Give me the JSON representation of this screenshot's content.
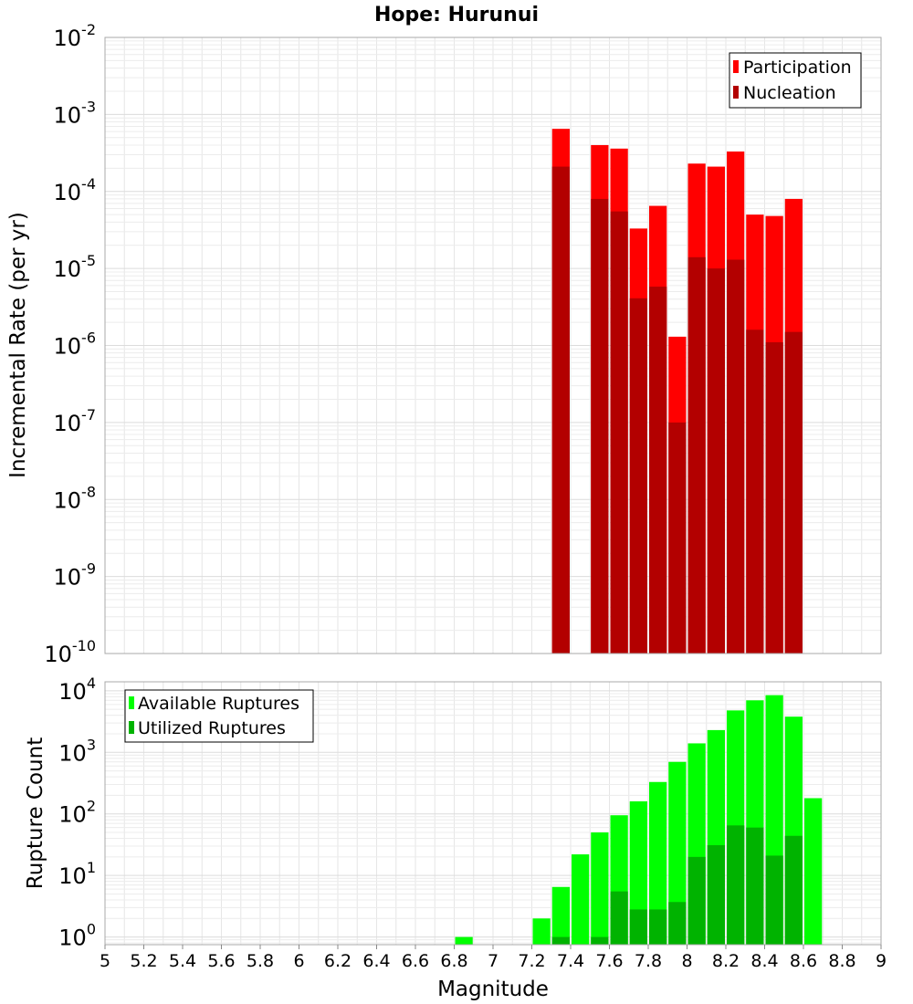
{
  "chart_data": [
    {
      "type": "bar",
      "title": "Hope: Hurunui",
      "xlabel": "",
      "ylabel": "Incremental Rate (per yr)",
      "yscale": "log",
      "xlim": [
        5,
        9
      ],
      "ylim": [
        1e-10,
        0.01
      ],
      "y_tick_exponents": [
        "-10",
        "-9",
        "-8",
        "-7",
        "-6",
        "-5",
        "-4",
        "-3",
        "-2"
      ],
      "grid": true,
      "legend_position": "top-right",
      "series": [
        {
          "name": "Participation",
          "color": "#ff0000",
          "x": [
            7.35,
            7.55,
            7.65,
            7.75,
            7.85,
            7.95,
            8.05,
            8.15,
            8.25,
            8.35,
            8.45,
            8.55
          ],
          "values": [
            0.00065,
            0.0004,
            0.00036,
            3.3e-05,
            6.5e-05,
            1.3e-06,
            0.00023,
            0.00021,
            0.00033,
            5e-05,
            4.8e-05,
            8e-05
          ]
        },
        {
          "name": "Nucleation",
          "color": "#b30000",
          "x": [
            7.35,
            7.55,
            7.65,
            7.75,
            7.85,
            7.95,
            8.05,
            8.15,
            8.25,
            8.35,
            8.45,
            8.55
          ],
          "values": [
            0.00021,
            8e-05,
            5.5e-05,
            4.1e-06,
            5.8e-06,
            1e-07,
            1.4e-05,
            1e-05,
            1.3e-05,
            1.6e-06,
            1.1e-06,
            1.5e-06
          ]
        }
      ]
    },
    {
      "type": "bar",
      "title": "",
      "xlabel": "Magnitude",
      "ylabel": "Rupture Count",
      "yscale": "log",
      "xlim": [
        5,
        9
      ],
      "ylim": [
        0.75,
        14000
      ],
      "y_tick_exponents": [
        "0",
        "1",
        "2",
        "3",
        "4"
      ],
      "x_ticks": [
        "5",
        "5.2",
        "5.4",
        "5.6",
        "5.8",
        "6",
        "6.2",
        "6.4",
        "6.6",
        "6.8",
        "7",
        "7.2",
        "7.4",
        "7.6",
        "7.8",
        "8",
        "8.2",
        "8.4",
        "8.6",
        "8.8",
        "9"
      ],
      "grid": true,
      "legend_position": "top-left",
      "series": [
        {
          "name": "Available Ruptures",
          "color": "#00ff00",
          "x": [
            6.85,
            7.25,
            7.35,
            7.45,
            7.55,
            7.65,
            7.75,
            7.85,
            7.95,
            8.05,
            8.15,
            8.25,
            8.35,
            8.45,
            8.55,
            8.65
          ],
          "values": [
            1,
            2,
            6.5,
            22,
            50,
            95,
            160,
            330,
            700,
            1400,
            2300,
            4800,
            7000,
            8500,
            3800,
            180
          ]
        },
        {
          "name": "Utilized Ruptures",
          "color": "#00b300",
          "x": [
            7.35,
            7.55,
            7.65,
            7.75,
            7.85,
            7.95,
            8.05,
            8.15,
            8.25,
            8.35,
            8.45,
            8.55
          ],
          "values": [
            1,
            1,
            5.5,
            2.8,
            2.8,
            3.7,
            20,
            31,
            65,
            60,
            21,
            44
          ]
        }
      ]
    }
  ]
}
